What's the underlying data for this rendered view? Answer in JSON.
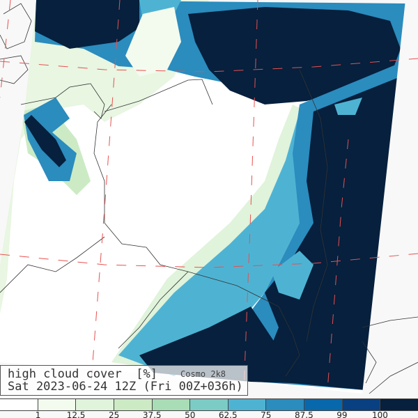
{
  "title": {
    "variable": "high cloud cover  [%]",
    "model": "Cosmo 2k8",
    "valid_time": "Sat 2023-06-24 12Z (Fri 00Z+036h)"
  },
  "legend": {
    "colors": [
      "#ffffff",
      "#f3fbee",
      "#e0f3db",
      "#ccebc5",
      "#a8ddb5",
      "#7bccc4",
      "#4eb3d3",
      "#2b8cbe",
      "#0868ac",
      "#084081",
      "#06203d"
    ],
    "labels": [
      "1",
      "12.5",
      "25",
      "37.5",
      "50",
      "62.5",
      "75",
      "87.5",
      "99",
      "100"
    ]
  },
  "colors": {
    "grid": "#e85050",
    "border": "#333333",
    "outside": "#f8f8f8"
  }
}
